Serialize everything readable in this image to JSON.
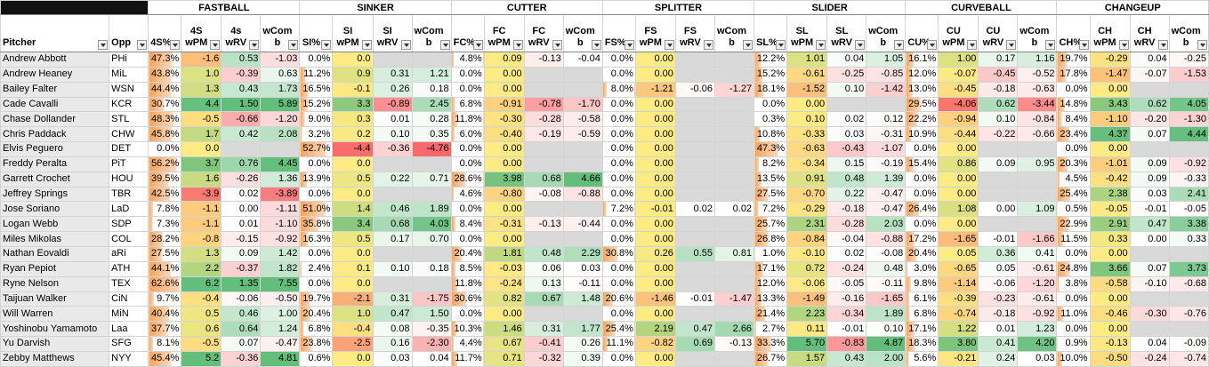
{
  "header": {
    "groups": [
      "FASTBALL",
      "SINKER",
      "CUTTER",
      "SPLITTER",
      "SLIDER",
      "CURVEBALL",
      "CHANGEUP"
    ],
    "columns": [
      [
        "Pitcher"
      ],
      [
        "Opp"
      ],
      [
        "4S%"
      ],
      [
        "4S",
        "wPM"
      ],
      [
        "4s",
        "wRV"
      ],
      [
        "wCom",
        "b"
      ],
      [
        "SI%"
      ],
      [
        "SI",
        "wPM"
      ],
      [
        "SI",
        "wRV"
      ],
      [
        "wCom",
        "b"
      ],
      [
        "FC%"
      ],
      [
        "FC",
        "wPM"
      ],
      [
        "FC",
        "wRV"
      ],
      [
        "wCom",
        "b"
      ],
      [
        "FS%"
      ],
      [
        "FS",
        "wPM"
      ],
      [
        "FS",
        "wRV"
      ],
      [
        "wCom",
        "b"
      ],
      [
        "SL%"
      ],
      [
        "SL",
        "wPM"
      ],
      [
        "SL",
        "wRV"
      ],
      [
        "wCom",
        "b"
      ],
      [
        "CU%"
      ],
      [
        "CU",
        "wPM"
      ],
      [
        "CU",
        "wRV"
      ],
      [
        "wCom",
        "b"
      ],
      [
        "CH%"
      ],
      [
        "CH",
        "wPM"
      ],
      [
        "CH",
        "wRV"
      ],
      [
        "wCom",
        "b"
      ]
    ]
  },
  "colors": {
    "percent_bar": "#f6a35a",
    "negative": "#f8696b",
    "middle": "#ffeb84",
    "positive": "#63be7b",
    "neutral": "#ffffff"
  },
  "rows": [
    [
      "Andrew Abbott",
      "PHi",
      "47.3%",
      "-1.6",
      "0.53",
      "-1.03",
      "0.0%",
      "0.0",
      null,
      null,
      "4.8%",
      "0.09",
      "-0.13",
      "-0.04",
      "0.0%",
      "0.00",
      null,
      null,
      "12.2%",
      "1.01",
      "0.04",
      "1.05",
      "16.1%",
      "1.00",
      "0.17",
      "1.16",
      "19.7%",
      "-0.29",
      "0.04",
      "-0.25"
    ],
    [
      "Andrew Heaney",
      "MiL",
      "43.8%",
      "1.0",
      "-0.39",
      "0.63",
      "11.2%",
      "0.9",
      "0.31",
      "1.21",
      "0.0%",
      "0.00",
      null,
      null,
      "0.0%",
      "0.00",
      null,
      null,
      "15.2%",
      "-0.61",
      "-0.25",
      "-0.85",
      "12.0%",
      "-0.07",
      "-0.45",
      "-0.52",
      "17.8%",
      "-1.47",
      "-0.07",
      "-1.53"
    ],
    [
      "Bailey Falter",
      "WSN",
      "44.4%",
      "1.3",
      "0.43",
      "1.73",
      "16.5%",
      "-0.1",
      "0.26",
      "0.18",
      "0.0%",
      "0.00",
      null,
      null,
      "8.0%",
      "-1.21",
      "-0.06",
      "-1.27",
      "18.1%",
      "-1.52",
      "0.10",
      "-1.42",
      "13.0%",
      "-0.45",
      "-0.18",
      "-0.63",
      "0.0%",
      "0.00",
      null,
      null
    ],
    [
      "Cade Cavalli",
      "KCR",
      "30.7%",
      "4.4",
      "1.50",
      "5.89",
      "15.2%",
      "3.3",
      "-0.89",
      "2.45",
      "6.8%",
      "-0.91",
      "-0.78",
      "-1.70",
      "0.0%",
      "0.00",
      null,
      null,
      "0.0%",
      "0.00",
      null,
      null,
      "29.5%",
      "-4.06",
      "0.62",
      "-3.44",
      "14.8%",
      "3.43",
      "0.62",
      "4.05"
    ],
    [
      "Chase Dollander",
      "STL",
      "48.3%",
      "-0.5",
      "-0.66",
      "-1.20",
      "9.0%",
      "0.3",
      "0.01",
      "0.28",
      "11.8%",
      "-0.30",
      "-0.28",
      "-0.58",
      "0.0%",
      "0.00",
      null,
      null,
      "0.3%",
      "0.10",
      "0.02",
      "0.12",
      "22.2%",
      "-0.94",
      "0.10",
      "-0.84",
      "8.4%",
      "-1.10",
      "-0.20",
      "-1.30"
    ],
    [
      "Chris Paddack",
      "CHW",
      "45.8%",
      "1.7",
      "0.42",
      "2.08",
      "3.2%",
      "0.2",
      "0.10",
      "0.35",
      "6.0%",
      "-0.40",
      "-0.19",
      "-0.59",
      "0.0%",
      "0.00",
      null,
      null,
      "10.8%",
      "-0.33",
      "0.03",
      "-0.31",
      "10.9%",
      "-0.44",
      "-0.22",
      "-0.66",
      "23.4%",
      "4.37",
      "0.07",
      "4.44"
    ],
    [
      "Elvis Peguero",
      "DET",
      "0.0%",
      "0.0",
      null,
      null,
      "52.7%",
      "-4.4",
      "-0.36",
      "-4.76",
      "0.0%",
      "0.00",
      null,
      null,
      "0.0%",
      "0.00",
      null,
      null,
      "47.3%",
      "-0.63",
      "-0.43",
      "-1.07",
      "0.0%",
      "0.00",
      null,
      null,
      "0.0%",
      "0.00",
      null,
      null
    ],
    [
      "Freddy Peralta",
      "PiT",
      "56.2%",
      "3.7",
      "0.76",
      "4.45",
      "0.0%",
      "0.0",
      null,
      null,
      "0.0%",
      "0.00",
      null,
      null,
      "0.0%",
      "0.00",
      null,
      null,
      "8.2%",
      "-0.34",
      "0.15",
      "-0.19",
      "15.4%",
      "0.86",
      "0.09",
      "0.95",
      "20.3%",
      "-1.01",
      "0.09",
      "-0.92"
    ],
    [
      "Garrett Crochet",
      "HOU",
      "39.5%",
      "1.6",
      "-0.26",
      "1.36",
      "13.9%",
      "0.5",
      "0.22",
      "0.71",
      "28.6%",
      "3.98",
      "0.68",
      "4.66",
      "0.0%",
      "0.00",
      null,
      null,
      "13.5%",
      "0.91",
      "0.48",
      "1.39",
      "0.0%",
      "0.00",
      null,
      null,
      "4.5%",
      "-0.42",
      "0.09",
      "-0.33"
    ],
    [
      "Jeffrey Springs",
      "TBR",
      "42.5%",
      "-3.9",
      "0.02",
      "-3.89",
      "0.0%",
      "0.0",
      null,
      null,
      "4.6%",
      "-0.80",
      "-0.08",
      "-0.88",
      "0.0%",
      "0.00",
      null,
      null,
      "27.5%",
      "-0.70",
      "0.22",
      "-0.47",
      "0.0%",
      "0.00",
      null,
      null,
      "25.4%",
      "2.38",
      "0.03",
      "2.41"
    ],
    [
      "Jose Soriano",
      "LaD",
      "7.8%",
      "-1.1",
      "0.00",
      "-1.11",
      "51.0%",
      "1.4",
      "0.46",
      "1.89",
      "0.0%",
      "0.00",
      null,
      null,
      "7.2%",
      "-0.01",
      "0.02",
      "0.02",
      "7.2%",
      "-0.29",
      "-0.18",
      "-0.47",
      "26.4%",
      "1.08",
      "0.00",
      "1.09",
      "0.5%",
      "-0.05",
      "-0.01",
      "-0.05"
    ],
    [
      "Logan Webb",
      "SDP",
      "7.3%",
      "-1.1",
      "0.01",
      "-1.10",
      "35.8%",
      "3.4",
      "0.68",
      "4.03",
      "8.4%",
      "-0.31",
      "-0.13",
      "-0.44",
      "0.0%",
      "0.00",
      null,
      null,
      "25.7%",
      "2.31",
      "-0.28",
      "2.03",
      "0.0%",
      "0.00",
      null,
      null,
      "22.9%",
      "2.91",
      "0.47",
      "3.38"
    ],
    [
      "Miles Mikolas",
      "COL",
      "28.2%",
      "-0.8",
      "-0.15",
      "-0.92",
      "16.3%",
      "0.5",
      "0.17",
      "0.70",
      "0.0%",
      "0.00",
      null,
      null,
      "0.0%",
      "0.00",
      null,
      null,
      "26.8%",
      "-0.84",
      "-0.04",
      "-0.88",
      "17.2%",
      "-1.65",
      "-0.01",
      "-1.66",
      "11.5%",
      "0.33",
      "0.00",
      "0.33"
    ],
    [
      "Nathan Eovaldi",
      "aRi",
      "27.5%",
      "1.3",
      "0.09",
      "1.42",
      "0.0%",
      "0.0",
      null,
      null,
      "20.4%",
      "1.81",
      "0.48",
      "2.29",
      "30.8%",
      "0.26",
      "0.55",
      "0.81",
      "1.0%",
      "-0.10",
      "0.02",
      "-0.08",
      "20.4%",
      "0.05",
      "0.36",
      "0.41",
      "0.0%",
      "0.00",
      null,
      null
    ],
    [
      "Ryan Pepiot",
      "ATH",
      "44.1%",
      "2.2",
      "-0.37",
      "1.82",
      "2.4%",
      "0.1",
      "0.10",
      "0.18",
      "8.5%",
      "-0.03",
      "0.06",
      "0.03",
      "0.0%",
      "0.00",
      null,
      null,
      "17.1%",
      "0.72",
      "-0.24",
      "0.48",
      "3.0%",
      "-0.65",
      "0.05",
      "-0.61",
      "24.8%",
      "3.66",
      "0.07",
      "3.73"
    ],
    [
      "Ryne Nelson",
      "TEX",
      "62.6%",
      "6.2",
      "1.35",
      "7.55",
      "0.0%",
      "0.0",
      null,
      null,
      "11.8%",
      "-0.24",
      "0.13",
      "-0.11",
      "0.0%",
      "0.00",
      null,
      null,
      "12.0%",
      "-0.06",
      "-0.05",
      "-0.11",
      "9.8%",
      "-1.14",
      "-0.06",
      "-1.20",
      "3.8%",
      "-0.58",
      "-0.10",
      "-0.68"
    ],
    [
      "Taijuan Walker",
      "CiN",
      "9.7%",
      "-0.4",
      "-0.06",
      "-0.50",
      "19.7%",
      "-2.1",
      "0.31",
      "-1.75",
      "30.6%",
      "0.82",
      "0.67",
      "1.48",
      "20.6%",
      "-1.46",
      "-0.01",
      "-1.47",
      "13.3%",
      "-1.49",
      "-0.16",
      "-1.65",
      "6.1%",
      "-0.39",
      "-0.23",
      "-0.61",
      "0.0%",
      "0.00",
      null,
      null
    ],
    [
      "Will Warren",
      "MiN",
      "40.4%",
      "0.5",
      "0.46",
      "1.00",
      "20.4%",
      "1.0",
      "0.47",
      "1.50",
      "0.0%",
      "0.00",
      null,
      null,
      "0.0%",
      "0.00",
      null,
      null,
      "21.4%",
      "2.23",
      "-0.34",
      "1.89",
      "6.8%",
      "-0.74",
      "-0.18",
      "-0.92",
      "11.0%",
      "-0.46",
      "-0.30",
      "-0.76"
    ],
    [
      "Yoshinobu Yamamoto",
      "Laa",
      "37.7%",
      "0.6",
      "0.64",
      "1.24",
      "6.8%",
      "-0.4",
      "0.08",
      "-0.35",
      "10.3%",
      "1.46",
      "0.31",
      "1.77",
      "25.4%",
      "2.19",
      "0.47",
      "2.66",
      "2.7%",
      "0.11",
      "-0.01",
      "0.10",
      "17.1%",
      "1.22",
      "0.01",
      "1.23",
      "0.0%",
      "0.00",
      null,
      null
    ],
    [
      "Yu Darvish",
      "SFG",
      "8.1%",
      "-0.5",
      "0.07",
      "-0.47",
      "23.8%",
      "-2.5",
      "0.16",
      "-2.30",
      "4.4%",
      "0.67",
      "-0.41",
      "0.26",
      "11.1%",
      "-0.82",
      "0.69",
      "-0.13",
      "33.3%",
      "5.70",
      "-0.83",
      "4.87",
      "18.3%",
      "3.80",
      "0.41",
      "4.20",
      "0.9%",
      "-0.13",
      "0.04",
      "-0.09"
    ],
    [
      "Zebby Matthews",
      "NYY",
      "45.4%",
      "5.2",
      "-0.36",
      "4.81",
      "0.6%",
      "0.0",
      "0.03",
      "0.04",
      "11.7%",
      "0.71",
      "-0.32",
      "0.39",
      "0.0%",
      "0.00",
      null,
      null,
      "26.7%",
      "1.57",
      "0.43",
      "2.00",
      "5.6%",
      "-0.21",
      "0.24",
      "0.03",
      "10.0%",
      "-0.50",
      "-0.24",
      "-0.74"
    ]
  ]
}
